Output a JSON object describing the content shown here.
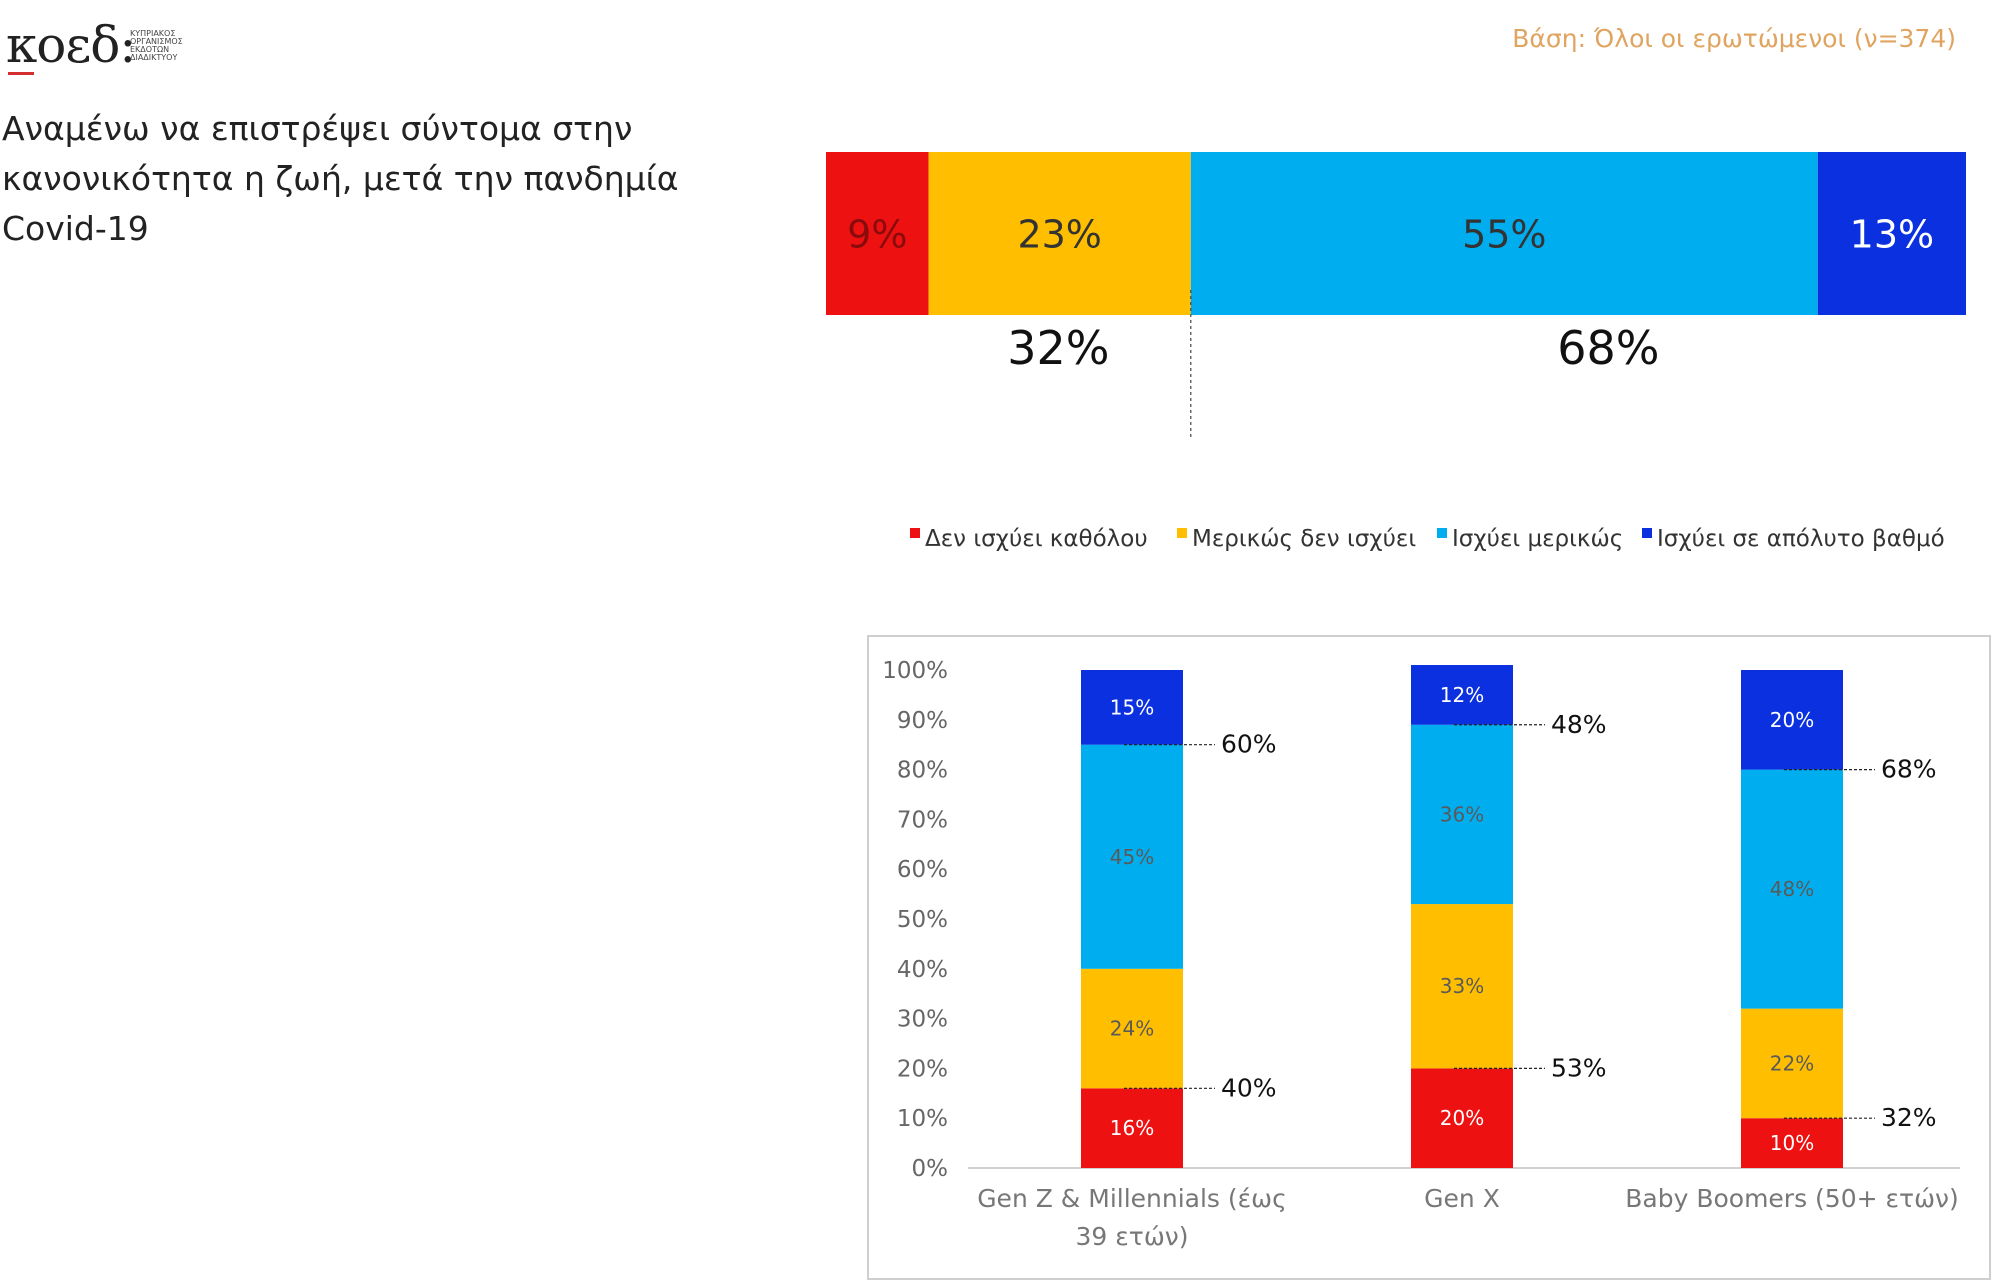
{
  "logo": {
    "wordmark": "κοεδ:",
    "lines": [
      "ΚΥΠΡΙΑΚΟΣ",
      "ΟΡΓΑΝΙΣΜΟΣ",
      "ΕΚΔΟΤΩΝ",
      "ΔΙΑΔΙΚΤΥΟΥ"
    ]
  },
  "base_note": "Βάση: Όλοι οι ερωτώμενοι (ν=374)",
  "title": "Αναμένω να επιστρέψει σύντομα στην κανονικότητα η ζωή, μετά την πανδημία Covid-19",
  "colors": {
    "not_at_all": "#ee1111",
    "partly_not": "#ffbf00",
    "partly": "#00aeef",
    "absolutely": "#0a30e0"
  },
  "chart_data": [
    {
      "type": "bar",
      "orientation": "horizontal-stacked",
      "series": [
        {
          "name": "Δεν ισχύει καθόλου",
          "values": [
            9
          ],
          "label": "9%"
        },
        {
          "name": "Μερικώς δεν ισχύει",
          "values": [
            23
          ],
          "label": "23%"
        },
        {
          "name": "Ισχύει μερικώς",
          "values": [
            55
          ],
          "label": "55%"
        },
        {
          "name": "Ισχύει σε απόλυτο βαθμό",
          "values": [
            13
          ],
          "label": "13%"
        }
      ],
      "totals": [
        {
          "label": "32%",
          "value": 32
        },
        {
          "label": "68%",
          "value": 68
        }
      ],
      "legend": [
        {
          "label": "Δεν ισχύει καθόλου",
          "color_key": "not_at_all"
        },
        {
          "label": "Μερικώς δεν ισχύει",
          "color_key": "partly_not"
        },
        {
          "label": "Ισχύει μερικώς",
          "color_key": "partly"
        },
        {
          "label": "Ισχύει σε απόλυτο βαθμό",
          "color_key": "absolutely"
        }
      ],
      "legend_position": "bottom"
    },
    {
      "type": "bar",
      "orientation": "vertical-stacked",
      "categories": [
        "Gen Z & Millennials (έως 39 ετών)",
        "Gen X",
        "Baby Boomers (50+ ετών)"
      ],
      "category_lines": [
        [
          "Gen Z & Millennials (έως",
          "39 ετών)"
        ],
        [
          "Gen X"
        ],
        [
          "Baby Boomers (50+ ετών)"
        ]
      ],
      "series": [
        {
          "name": "Δεν ισχύει καθόλου",
          "values": [
            16,
            20,
            10
          ]
        },
        {
          "name": "Μερικώς δεν ισχύει",
          "values": [
            24,
            33,
            22
          ]
        },
        {
          "name": "Ισχύει μερικώς",
          "values": [
            45,
            36,
            48
          ]
        },
        {
          "name": "Ισχύει σε απόλυτο βαθμό",
          "values": [
            15,
            12,
            20
          ]
        }
      ],
      "value_labels": [
        [
          "16%",
          "24%",
          "45%",
          "15%"
        ],
        [
          "20%",
          "33%",
          "36%",
          "12%"
        ],
        [
          "10%",
          "22%",
          "48%",
          "20%"
        ]
      ],
      "annotations": [
        {
          "upper": "60%",
          "upper_value": 60,
          "lower": "40%",
          "lower_value": 40
        },
        {
          "upper": "48%",
          "upper_value": 48,
          "lower": "53%",
          "lower_value": 53
        },
        {
          "upper": "68%",
          "upper_value": 68,
          "lower": "32%",
          "lower_value": 32
        }
      ],
      "y_ticks": [
        "0%",
        "10%",
        "20%",
        "30%",
        "40%",
        "50%",
        "60%",
        "70%",
        "80%",
        "90%",
        "100%"
      ],
      "ylim": [
        0,
        100
      ]
    }
  ]
}
